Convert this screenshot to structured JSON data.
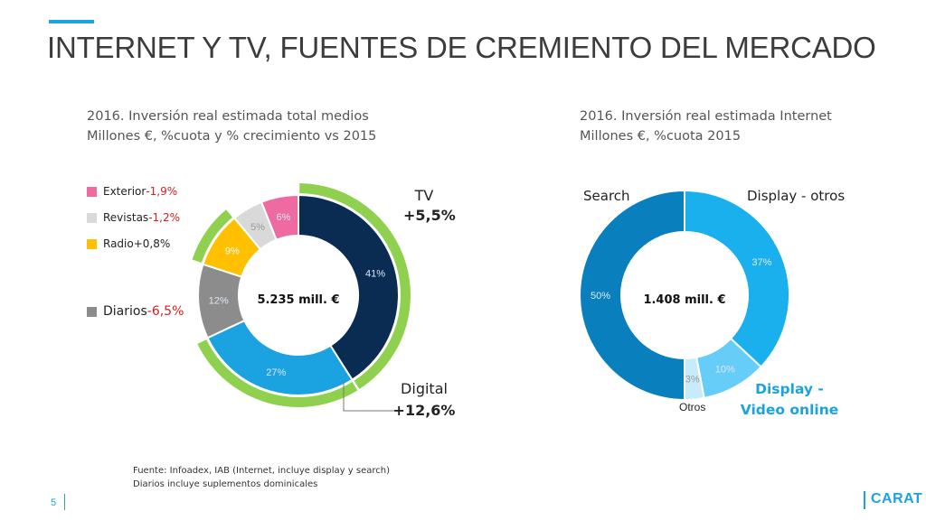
{
  "header": {
    "title": "INTERNET Y TV, FUENTES DE CREMIENTO DEL MERCADO"
  },
  "colors": {
    "accent": "#1aa3e0",
    "tv": "#0b2c52",
    "digital": "#1aa3e0",
    "diarios": "#8c8c8c",
    "radio": "#ffc000",
    "revistas": "#d9d9d9",
    "exterior": "#ef6aa1",
    "growth_ring": "#8fd14f",
    "search": "#0a7fbe",
    "display_otros": "#1ab0ee",
    "display_video": "#66cdf8",
    "otros": "#c7ebfa",
    "negative": "#d42020",
    "highlight": "#1aa3e0"
  },
  "left": {
    "subtitle_1": "2016. Inversión real estimada total medios",
    "subtitle_2": "Millones €, %cuota y % crecimiento vs 2015",
    "center_label": "5.235 mill. €",
    "legend": {
      "exterior": {
        "name": "Exterior ",
        "change": "-1,9%"
      },
      "revistas": {
        "name": "Revistas ",
        "change": "-1,2%"
      },
      "radio": {
        "name": "Radio+0,8%",
        "change": ""
      },
      "diarios": {
        "name": "Diarios ",
        "change": "-6,5%"
      }
    },
    "tv_label": "TV",
    "tv_change": "+5,5%",
    "digital_label": "Digital",
    "digital_change": "+12,6%"
  },
  "right": {
    "subtitle_1": "2016. Inversión real estimada Internet",
    "subtitle_2": "Millones €, %cuota 2015",
    "center_label": "1.408 mill. €",
    "search_label": "Search",
    "display_otros_label": "Display - otros",
    "display_video_label_1": "Display -",
    "display_video_label_2": "Video online",
    "otros_label": "Otros"
  },
  "chart_data": [
    {
      "type": "pie",
      "variant": "donut",
      "slices": [
        {
          "name": "TV",
          "value": 41,
          "label": "41%",
          "color": "#0b2c52"
        },
        {
          "name": "Digital",
          "value": 27,
          "label": "27%",
          "color": "#1aa3e0"
        },
        {
          "name": "Diarios",
          "value": 12,
          "label": "12%",
          "color": "#8c8c8c"
        },
        {
          "name": "Radio",
          "value": 9,
          "label": "9%",
          "color": "#ffc000"
        },
        {
          "name": "Revistas",
          "value": 5,
          "label": "5%",
          "color": "#d9d9d9"
        },
        {
          "name": "Exterior",
          "value": 6,
          "label": "6%",
          "color": "#ef6aa1"
        }
      ],
      "growth_ring_segments": [
        "TV",
        "Digital",
        "Radio"
      ]
    },
    {
      "type": "pie",
      "variant": "donut",
      "slices": [
        {
          "name": "Display - otros",
          "value": 37,
          "label": "37%",
          "color": "#1ab0ee"
        },
        {
          "name": "Display - Video online",
          "value": 10,
          "label": "10%",
          "color": "#66cdf8"
        },
        {
          "name": "Otros",
          "value": 3,
          "label": "3%",
          "color": "#c7ebfa"
        },
        {
          "name": "Search",
          "value": 50,
          "label": "50%",
          "color": "#0a7fbe"
        }
      ]
    }
  ],
  "footnote": {
    "line1": "Fuente: Infoadex, IAB (Internet, incluye display y search)",
    "line2": "Diarios incluye suplementos dominicales"
  },
  "footer": {
    "page_number": "5",
    "logo_text": "CARAT"
  }
}
